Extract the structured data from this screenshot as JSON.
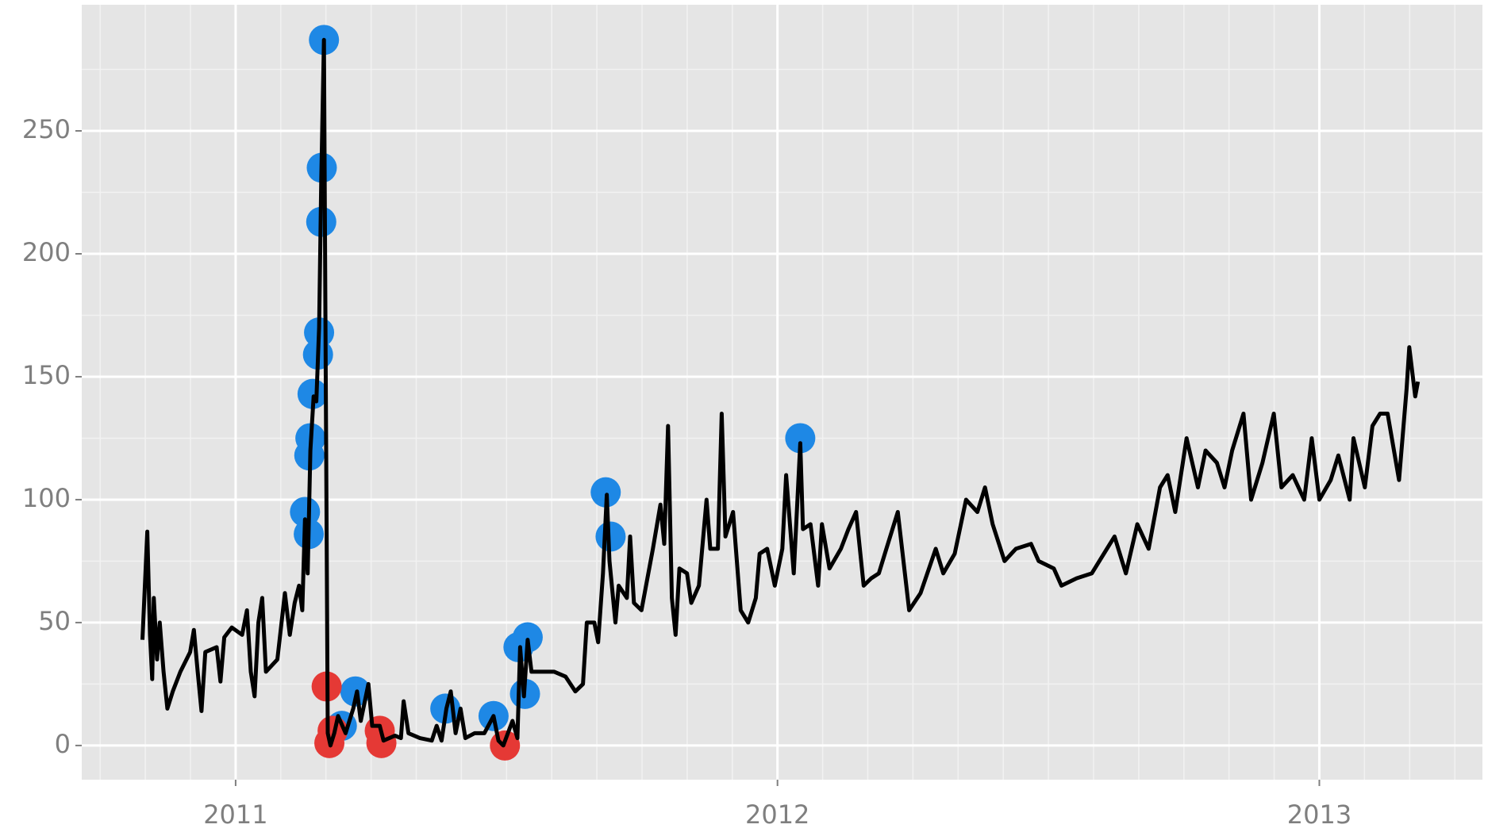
{
  "chart_data": {
    "type": "line",
    "xlim": [
      2010.716,
      2013.301
    ],
    "ylim": [
      -13.9,
      301.3
    ],
    "xticks": [
      2011,
      2012,
      2013
    ],
    "yticks": [
      0,
      50,
      100,
      150,
      200,
      250
    ],
    "grid": true,
    "series": [
      {
        "style": "point",
        "color": "#1e88e5",
        "x": [
          2011.163,
          2011.159,
          2011.158,
          2011.154,
          2011.152,
          2011.142,
          2011.138,
          2011.136,
          2011.128,
          2011.135,
          2011.221,
          2011.196,
          2011.387,
          2011.476,
          2011.522,
          2011.539,
          2011.534,
          2011.683,
          2011.692,
          2012.042
        ],
        "values": [
          287,
          235,
          213,
          168,
          159,
          143,
          125,
          118,
          95,
          86,
          22,
          8,
          15,
          12,
          40,
          44,
          21,
          103,
          85,
          125
        ]
      },
      {
        "style": "point",
        "color": "#e53935",
        "x": [
          2011.168,
          2011.173,
          2011.179,
          2011.266,
          2011.269,
          2011.497
        ],
        "values": [
          24,
          1,
          6,
          6,
          1,
          0
        ]
      },
      {
        "style": "line",
        "color": "#000000",
        "x": [
          2010.828,
          2010.837,
          2010.842,
          2010.846,
          2010.849,
          2010.855,
          2010.86,
          2010.867,
          2010.874,
          2010.884,
          2010.898,
          2010.916,
          2010.923,
          2010.93,
          2010.937,
          2010.944,
          2010.965,
          2010.972,
          2010.979,
          2010.993,
          2011.012,
          2011.021,
          2011.028,
          2011.035,
          2011.042,
          2011.049,
          2011.056,
          2011.077,
          2011.091,
          2011.1,
          2011.109,
          2011.117,
          2011.123,
          2011.128,
          2011.133,
          2011.138,
          2011.144,
          2011.149,
          2011.154,
          2011.158,
          2011.163,
          2011.166,
          2011.17,
          2011.175,
          2011.182,
          2011.189,
          2011.203,
          2011.217,
          2011.224,
          2011.231,
          2011.245,
          2011.252,
          2011.266,
          2011.273,
          2011.294,
          2011.305,
          2011.31,
          2011.319,
          2011.34,
          2011.362,
          2011.371,
          2011.38,
          2011.389,
          2011.397,
          2011.406,
          2011.415,
          2011.424,
          2011.441,
          2011.459,
          2011.476,
          2011.485,
          2011.494,
          2011.511,
          2011.52,
          2011.525,
          2011.532,
          2011.539,
          2011.546,
          2011.567,
          2011.588,
          2011.609,
          2011.627,
          2011.641,
          2011.648,
          2011.662,
          2011.669,
          2011.678,
          2011.685,
          2011.69,
          2011.701,
          2011.707,
          2011.722,
          2011.728,
          2011.735,
          2011.749,
          2011.77,
          2011.784,
          2011.791,
          2011.798,
          2011.805,
          2011.812,
          2011.819,
          2011.833,
          2011.841,
          2011.855,
          2011.869,
          2011.876,
          2011.89,
          2011.897,
          2011.904,
          2011.918,
          2011.932,
          2011.946,
          2011.96,
          2011.967,
          2011.981,
          2011.995,
          2012.009,
          2012.016,
          2012.03,
          2012.042,
          2012.047,
          2012.061,
          2012.075,
          2012.082,
          2012.096,
          2012.117,
          2012.131,
          2012.145,
          2012.159,
          2012.173,
          2012.187,
          2012.201,
          2012.222,
          2012.243,
          2012.264,
          2012.292,
          2012.306,
          2012.327,
          2012.348,
          2012.369,
          2012.383,
          2012.397,
          2012.419,
          2012.44,
          2012.468,
          2012.482,
          2012.51,
          2012.524,
          2012.552,
          2012.58,
          2012.608,
          2012.622,
          2012.643,
          2012.664,
          2012.685,
          2012.706,
          2012.72,
          2012.734,
          2012.755,
          2012.776,
          2012.79,
          2012.811,
          2012.825,
          2012.839,
          2012.86,
          2012.874,
          2012.895,
          2012.916,
          2012.93,
          2012.951,
          2012.972,
          2012.986,
          2013.0,
          2013.021,
          2013.035,
          2013.056,
          2013.063,
          2013.084,
          2013.098,
          2013.112,
          2013.126,
          2013.147,
          2013.161,
          2013.166,
          2013.177,
          2013.182
        ],
        "values": [
          43,
          87,
          45,
          27,
          60,
          35,
          50,
          30,
          15,
          22,
          30,
          38,
          47,
          30,
          14,
          38,
          40,
          26,
          44,
          48,
          45,
          55,
          30,
          20,
          50,
          60,
          30,
          35,
          62,
          45,
          58,
          65,
          55,
          92,
          70,
          120,
          142,
          140,
          170,
          230,
          287,
          160,
          5,
          0,
          5,
          12,
          5,
          15,
          22,
          10,
          25,
          8,
          8,
          2,
          4,
          3,
          18,
          5,
          3,
          2,
          8,
          2,
          15,
          22,
          5,
          15,
          3,
          5,
          5,
          12,
          2,
          0,
          10,
          3,
          40,
          20,
          43,
          30,
          30,
          30,
          28,
          22,
          25,
          50,
          50,
          42,
          70,
          102,
          75,
          50,
          65,
          60,
          85,
          58,
          55,
          80,
          98,
          82,
          130,
          60,
          45,
          72,
          70,
          58,
          65,
          100,
          80,
          80,
          135,
          85,
          95,
          55,
          50,
          60,
          78,
          80,
          65,
          80,
          110,
          70,
          123,
          88,
          90,
          65,
          90,
          72,
          80,
          88,
          95,
          65,
          68,
          70,
          80,
          95,
          55,
          62,
          80,
          70,
          78,
          100,
          95,
          105,
          90,
          75,
          80,
          82,
          75,
          72,
          65,
          68,
          70,
          80,
          85,
          70,
          90,
          80,
          105,
          110,
          95,
          125,
          105,
          120,
          115,
          105,
          120,
          135,
          100,
          115,
          135,
          105,
          110,
          100,
          125,
          100,
          108,
          118,
          100,
          125,
          105,
          130,
          135,
          135,
          108,
          145,
          162,
          142,
          148
        ]
      }
    ]
  }
}
